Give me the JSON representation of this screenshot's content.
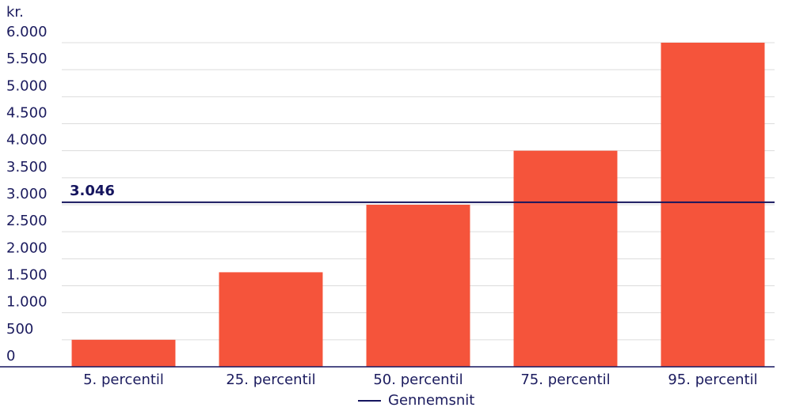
{
  "chart_data": {
    "type": "bar",
    "y_unit": "kr.",
    "categories": [
      "5. percentil",
      "25. percentil",
      "50. percentil",
      "75. percentil",
      "95. percentil"
    ],
    "values": [
      500,
      1750,
      3000,
      4000,
      6000
    ],
    "color": "#f5543b",
    "ylim": [
      0,
      6000
    ],
    "yticks": [
      0,
      500,
      {
        "value": 1000,
        "label": "1.000"
      },
      {
        "value": 1500,
        "label": "1.500"
      },
      {
        "value": 2000,
        "label": "2.000"
      },
      {
        "value": 2500,
        "label": "2.500"
      },
      {
        "value": 3000,
        "label": "3.000"
      },
      {
        "value": 3500,
        "label": "3.500"
      },
      {
        "value": 4000,
        "label": "4.000"
      },
      {
        "value": 4500,
        "label": "4.500"
      },
      {
        "value": 5000,
        "label": "5.000"
      },
      {
        "value": 5500,
        "label": "5.500"
      },
      {
        "value": 6000,
        "label": "6.000"
      }
    ],
    "grid": true,
    "reference_line": {
      "name": "Gennemsnit",
      "value": 3046,
      "value_label": "3.046",
      "color": "#15155e"
    }
  }
}
